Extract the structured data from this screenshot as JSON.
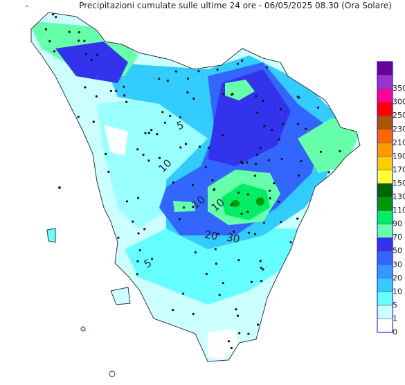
{
  "map": {
    "marker": "-",
    "title": "Precipitazioni cumulate sulle ultime 24 ore - 06/05/2025 08.30 (Ora Solare)",
    "legend": [
      {
        "label": "0",
        "color": "#ffffff"
      },
      {
        "label": "1",
        "color": "#ccffff"
      },
      {
        "label": "5",
        "color": "#66ffff"
      },
      {
        "label": "10",
        "color": "#33ccff"
      },
      {
        "label": "20",
        "color": "#3399ff"
      },
      {
        "label": "30",
        "color": "#3366ff"
      },
      {
        "label": "50",
        "color": "#3333ee"
      },
      {
        "label": "70",
        "color": "#66ffaa"
      },
      {
        "label": "90",
        "color": "#00ee66"
      },
      {
        "label": "110",
        "color": "#009900"
      },
      {
        "label": "130",
        "color": "#006600"
      },
      {
        "label": "150",
        "color": "#ffff33"
      },
      {
        "label": "170",
        "color": "#ffcc00"
      },
      {
        "label": "190",
        "color": "#ff9900"
      },
      {
        "label": "210",
        "color": "#ff6600"
      },
      {
        "label": "230",
        "color": "#aa5500"
      },
      {
        "label": "250",
        "color": "#ff0000"
      },
      {
        "label": "300",
        "color": "#ff0099"
      },
      {
        "label": "350",
        "color": "#9933cc"
      }
    ],
    "legend_top_color": "#660099",
    "contour_labels": [
      "5",
      "10",
      "10",
      "10",
      "20",
      "30",
      "5"
    ]
  }
}
